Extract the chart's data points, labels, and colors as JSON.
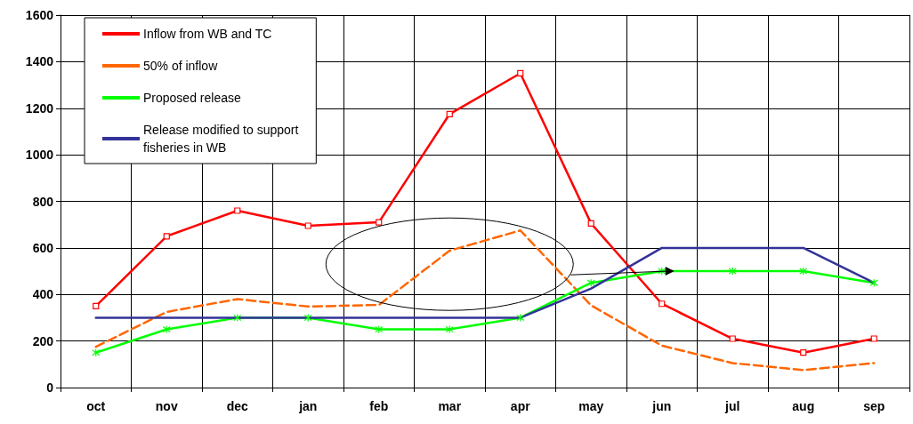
{
  "chart_data": {
    "type": "line",
    "categories": [
      "oct",
      "nov",
      "dec",
      "jan",
      "feb",
      "mar",
      "apr",
      "may",
      "jun",
      "jul",
      "aug",
      "sep"
    ],
    "series": [
      {
        "name": "Inflow from WB and TC",
        "color": "#ff0000",
        "marker": "square",
        "line_style": "solid",
        "values": [
          350,
          650,
          760,
          695,
          710,
          1175,
          1350,
          705,
          360,
          210,
          150,
          210
        ]
      },
      {
        "name": "50% of inflow",
        "color": "#ff6600",
        "marker": "none",
        "line_style": "dashed",
        "values": [
          175,
          325,
          380,
          348,
          355,
          588,
          675,
          353,
          180,
          105,
          75,
          105
        ]
      },
      {
        "name": "Proposed release",
        "color": "#00ff00",
        "marker": "cross",
        "line_style": "solid",
        "values": [
          150,
          250,
          300,
          300,
          250,
          250,
          300,
          450,
          500,
          500,
          500,
          450
        ]
      },
      {
        "name": "Release modified to support fisheries in WB",
        "color": "#333399",
        "marker": "none",
        "line_style": "solid",
        "values": [
          300,
          300,
          300,
          300,
          300,
          300,
          300,
          425,
          600,
          600,
          600,
          450
        ]
      }
    ],
    "ylim": [
      0,
      1600
    ],
    "yticks": [
      0,
      200,
      400,
      600,
      800,
      1000,
      1200,
      1400,
      1600
    ],
    "grid": true,
    "legend": "top left"
  }
}
